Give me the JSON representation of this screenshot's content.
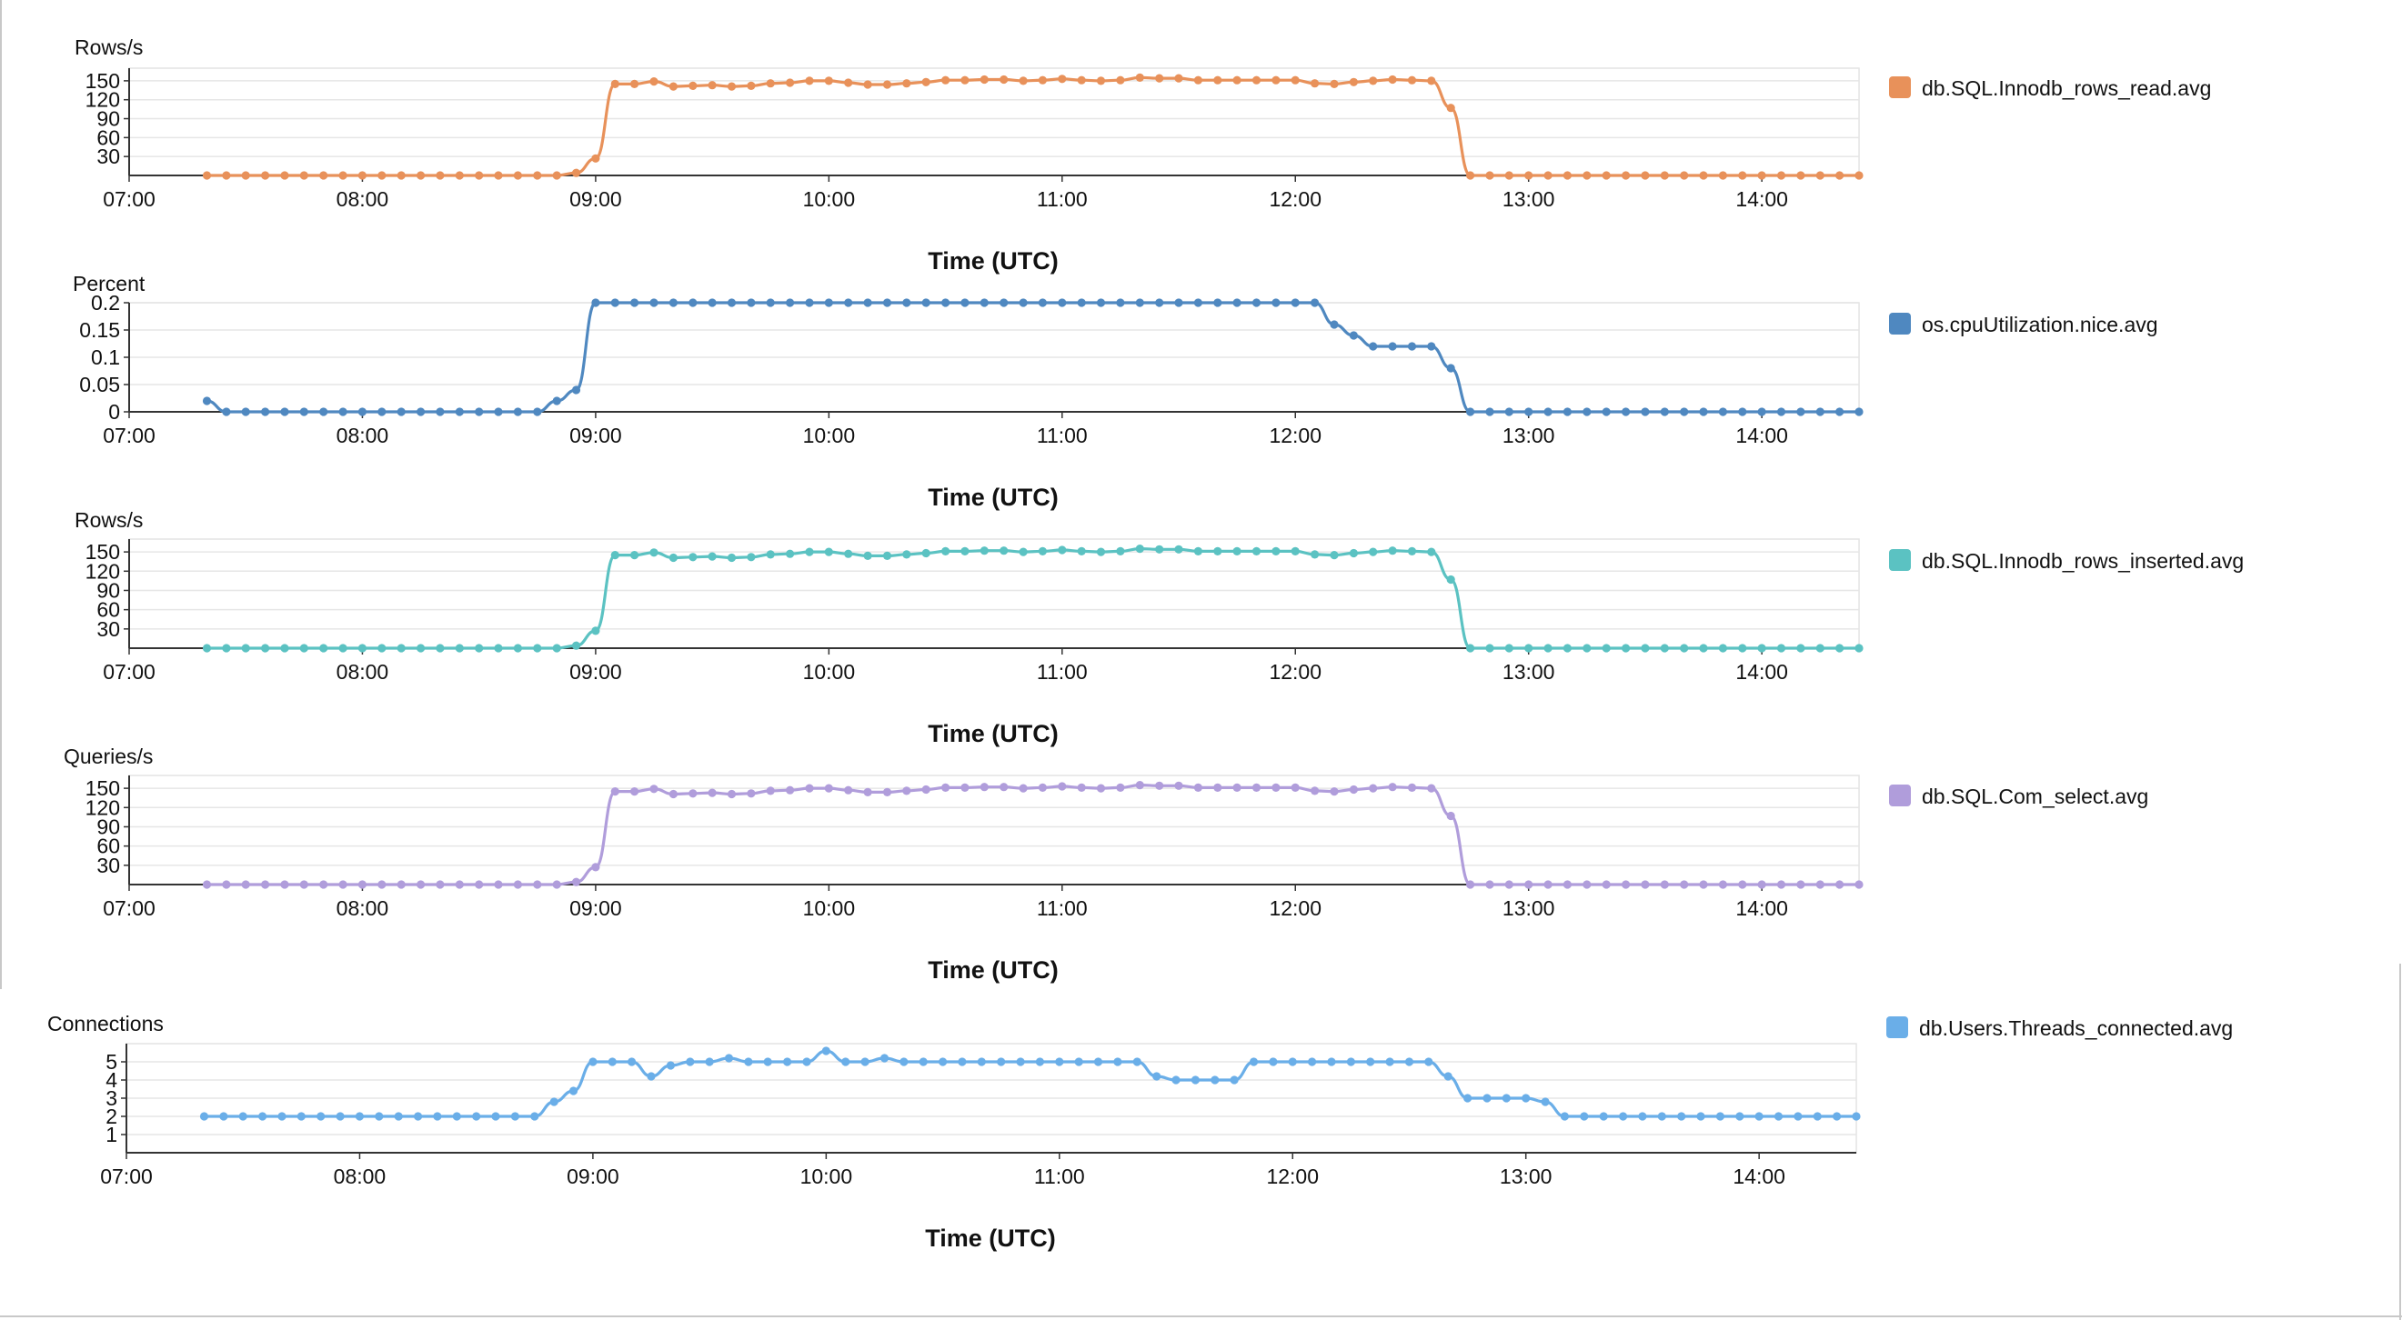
{
  "chart_data": [
    {
      "type": "line",
      "ylabel": "Rows/s",
      "xlabel": "Time (UTC)",
      "legend": "db.SQL.Innodb_rows_read.avg",
      "color": "#e8915a",
      "ylim": [
        0,
        170
      ],
      "yticks": [
        "30",
        "60",
        "90",
        "120",
        "150"
      ],
      "xticks": [
        "07:00",
        "08:00",
        "09:00",
        "10:00",
        "11:00",
        "12:00",
        "13:00",
        "14:00"
      ],
      "x_range": [
        "07:00",
        "14:25"
      ],
      "grid": true,
      "x": [
        "07:20",
        "07:25",
        "07:30",
        "07:35",
        "07:40",
        "07:45",
        "07:50",
        "07:55",
        "08:00",
        "08:05",
        "08:10",
        "08:15",
        "08:20",
        "08:25",
        "08:30",
        "08:35",
        "08:40",
        "08:45",
        "08:50",
        "08:55",
        "09:00",
        "09:05",
        "09:10",
        "09:15",
        "09:20",
        "09:25",
        "09:30",
        "09:35",
        "09:40",
        "09:45",
        "09:50",
        "09:55",
        "10:00",
        "10:05",
        "10:10",
        "10:15",
        "10:20",
        "10:25",
        "10:30",
        "10:35",
        "10:40",
        "10:45",
        "10:50",
        "10:55",
        "11:00",
        "11:05",
        "11:10",
        "11:15",
        "11:20",
        "11:25",
        "11:30",
        "11:35",
        "11:40",
        "11:45",
        "11:50",
        "11:55",
        "12:00",
        "12:05",
        "12:10",
        "12:15",
        "12:20",
        "12:25",
        "12:30",
        "12:35",
        "12:40",
        "12:45",
        "12:50",
        "12:55",
        "13:00",
        "13:05",
        "13:10",
        "13:15",
        "13:20",
        "13:25",
        "13:30",
        "13:35",
        "13:40",
        "13:45",
        "13:50",
        "13:55",
        "14:00",
        "14:05",
        "14:10",
        "14:15",
        "14:20",
        "14:25"
      ],
      "y": [
        0,
        0,
        0,
        0,
        0,
        0,
        0,
        0,
        0,
        0,
        0,
        0,
        0,
        0,
        0,
        0,
        0,
        0,
        0,
        4,
        27,
        145,
        145,
        149,
        141,
        142,
        143,
        141,
        142,
        146,
        147,
        150,
        150,
        147,
        144,
        144,
        146,
        148,
        151,
        151,
        152,
        152,
        150,
        151,
        153,
        151,
        150,
        151,
        155,
        154,
        154,
        151,
        151,
        151,
        151,
        151,
        151,
        146,
        145,
        148,
        150,
        152,
        151,
        150,
        107,
        0,
        0,
        0,
        0,
        0,
        0,
        0,
        0,
        0,
        0,
        0,
        0,
        0,
        0,
        0,
        0,
        0,
        0,
        0,
        0,
        0
      ]
    },
    {
      "type": "line",
      "ylabel": "Percent",
      "xlabel": "Time (UTC)",
      "legend": "os.cpuUtilization.nice.avg",
      "color": "#4f88c0",
      "ylim": [
        0,
        0.2
      ],
      "yticks": [
        "0",
        "0.05",
        "0.1",
        "0.15",
        "0.2"
      ],
      "xticks": [
        "07:00",
        "08:00",
        "09:00",
        "10:00",
        "11:00",
        "12:00",
        "13:00",
        "14:00"
      ],
      "x_range": [
        "07:00",
        "14:25"
      ],
      "grid": true,
      "x": [
        "07:20",
        "07:25",
        "07:30",
        "07:35",
        "07:40",
        "07:45",
        "07:50",
        "07:55",
        "08:00",
        "08:05",
        "08:10",
        "08:15",
        "08:20",
        "08:25",
        "08:30",
        "08:35",
        "08:40",
        "08:45",
        "08:50",
        "08:55",
        "09:00",
        "09:05",
        "09:10",
        "09:15",
        "09:20",
        "09:25",
        "09:30",
        "09:35",
        "09:40",
        "09:45",
        "09:50",
        "09:55",
        "10:00",
        "10:05",
        "10:10",
        "10:15",
        "10:20",
        "10:25",
        "10:30",
        "10:35",
        "10:40",
        "10:45",
        "10:50",
        "10:55",
        "11:00",
        "11:05",
        "11:10",
        "11:15",
        "11:20",
        "11:25",
        "11:30",
        "11:35",
        "11:40",
        "11:45",
        "11:50",
        "11:55",
        "12:00",
        "12:05",
        "12:10",
        "12:15",
        "12:20",
        "12:25",
        "12:30",
        "12:35",
        "12:40",
        "12:45",
        "12:50",
        "12:55",
        "13:00",
        "13:05",
        "13:10",
        "13:15",
        "13:20",
        "13:25",
        "13:30",
        "13:35",
        "13:40",
        "13:45",
        "13:50",
        "13:55",
        "14:00",
        "14:05",
        "14:10",
        "14:15",
        "14:20",
        "14:25"
      ],
      "y": [
        0.02,
        0,
        0,
        0,
        0,
        0,
        0,
        0,
        0,
        0,
        0,
        0,
        0,
        0,
        0,
        0,
        0,
        0,
        0.02,
        0.04,
        0.2,
        0.2,
        0.2,
        0.2,
        0.2,
        0.2,
        0.2,
        0.2,
        0.2,
        0.2,
        0.2,
        0.2,
        0.2,
        0.2,
        0.2,
        0.2,
        0.2,
        0.2,
        0.2,
        0.2,
        0.2,
        0.2,
        0.2,
        0.2,
        0.2,
        0.2,
        0.2,
        0.2,
        0.2,
        0.2,
        0.2,
        0.2,
        0.2,
        0.2,
        0.2,
        0.2,
        0.2,
        0.2,
        0.16,
        0.14,
        0.12,
        0.12,
        0.12,
        0.12,
        0.08,
        0,
        0,
        0,
        0,
        0,
        0,
        0,
        0,
        0,
        0,
        0,
        0,
        0,
        0,
        0,
        0,
        0,
        0,
        0,
        0,
        0
      ]
    },
    {
      "type": "line",
      "ylabel": "Rows/s",
      "xlabel": "Time (UTC)",
      "legend": "db.SQL.Innodb_rows_inserted.avg",
      "color": "#5bc2c2",
      "ylim": [
        0,
        170
      ],
      "yticks": [
        "30",
        "60",
        "90",
        "120",
        "150"
      ],
      "xticks": [
        "07:00",
        "08:00",
        "09:00",
        "10:00",
        "11:00",
        "12:00",
        "13:00",
        "14:00"
      ],
      "x_range": [
        "07:00",
        "14:25"
      ],
      "grid": true,
      "x": [
        "07:20",
        "07:25",
        "07:30",
        "07:35",
        "07:40",
        "07:45",
        "07:50",
        "07:55",
        "08:00",
        "08:05",
        "08:10",
        "08:15",
        "08:20",
        "08:25",
        "08:30",
        "08:35",
        "08:40",
        "08:45",
        "08:50",
        "08:55",
        "09:00",
        "09:05",
        "09:10",
        "09:15",
        "09:20",
        "09:25",
        "09:30",
        "09:35",
        "09:40",
        "09:45",
        "09:50",
        "09:55",
        "10:00",
        "10:05",
        "10:10",
        "10:15",
        "10:20",
        "10:25",
        "10:30",
        "10:35",
        "10:40",
        "10:45",
        "10:50",
        "10:55",
        "11:00",
        "11:05",
        "11:10",
        "11:15",
        "11:20",
        "11:25",
        "11:30",
        "11:35",
        "11:40",
        "11:45",
        "11:50",
        "11:55",
        "12:00",
        "12:05",
        "12:10",
        "12:15",
        "12:20",
        "12:25",
        "12:30",
        "12:35",
        "12:40",
        "12:45",
        "12:50",
        "12:55",
        "13:00",
        "13:05",
        "13:10",
        "13:15",
        "13:20",
        "13:25",
        "13:30",
        "13:35",
        "13:40",
        "13:45",
        "13:50",
        "13:55",
        "14:00",
        "14:05",
        "14:10",
        "14:15",
        "14:20",
        "14:25"
      ],
      "y": [
        0,
        0,
        0,
        0,
        0,
        0,
        0,
        0,
        0,
        0,
        0,
        0,
        0,
        0,
        0,
        0,
        0,
        0,
        0,
        4,
        27,
        145,
        145,
        149,
        141,
        142,
        143,
        141,
        142,
        146,
        147,
        150,
        150,
        147,
        144,
        144,
        146,
        148,
        151,
        151,
        152,
        152,
        150,
        151,
        153,
        151,
        150,
        151,
        155,
        154,
        154,
        151,
        151,
        151,
        151,
        151,
        151,
        146,
        145,
        148,
        150,
        152,
        151,
        150,
        107,
        0,
        0,
        0,
        0,
        0,
        0,
        0,
        0,
        0,
        0,
        0,
        0,
        0,
        0,
        0,
        0,
        0,
        0,
        0,
        0,
        0
      ]
    },
    {
      "type": "line",
      "ylabel": "Queries/s",
      "xlabel": "Time (UTC)",
      "legend": "db.SQL.Com_select.avg",
      "color": "#b09ddb",
      "ylim": [
        0,
        170
      ],
      "yticks": [
        "30",
        "60",
        "90",
        "120",
        "150"
      ],
      "xticks": [
        "07:00",
        "08:00",
        "09:00",
        "10:00",
        "11:00",
        "12:00",
        "13:00",
        "14:00"
      ],
      "x_range": [
        "07:00",
        "14:25"
      ],
      "grid": true,
      "x": [
        "07:20",
        "07:25",
        "07:30",
        "07:35",
        "07:40",
        "07:45",
        "07:50",
        "07:55",
        "08:00",
        "08:05",
        "08:10",
        "08:15",
        "08:20",
        "08:25",
        "08:30",
        "08:35",
        "08:40",
        "08:45",
        "08:50",
        "08:55",
        "09:00",
        "09:05",
        "09:10",
        "09:15",
        "09:20",
        "09:25",
        "09:30",
        "09:35",
        "09:40",
        "09:45",
        "09:50",
        "09:55",
        "10:00",
        "10:05",
        "10:10",
        "10:15",
        "10:20",
        "10:25",
        "10:30",
        "10:35",
        "10:40",
        "10:45",
        "10:50",
        "10:55",
        "11:00",
        "11:05",
        "11:10",
        "11:15",
        "11:20",
        "11:25",
        "11:30",
        "11:35",
        "11:40",
        "11:45",
        "11:50",
        "11:55",
        "12:00",
        "12:05",
        "12:10",
        "12:15",
        "12:20",
        "12:25",
        "12:30",
        "12:35",
        "12:40",
        "12:45",
        "12:50",
        "12:55",
        "13:00",
        "13:05",
        "13:10",
        "13:15",
        "13:20",
        "13:25",
        "13:30",
        "13:35",
        "13:40",
        "13:45",
        "13:50",
        "13:55",
        "14:00",
        "14:05",
        "14:10",
        "14:15",
        "14:20",
        "14:25"
      ],
      "y": [
        0,
        0,
        0,
        0,
        0,
        0,
        0,
        0,
        0,
        0,
        0,
        0,
        0,
        0,
        0,
        0,
        0,
        0,
        0,
        4,
        27,
        145,
        145,
        149,
        141,
        142,
        143,
        141,
        142,
        146,
        147,
        150,
        150,
        147,
        144,
        144,
        146,
        148,
        151,
        151,
        152,
        152,
        150,
        151,
        153,
        151,
        150,
        151,
        155,
        154,
        154,
        151,
        151,
        151,
        151,
        151,
        151,
        146,
        145,
        148,
        150,
        152,
        151,
        150,
        107,
        0,
        0,
        0,
        0,
        0,
        0,
        0,
        0,
        0,
        0,
        0,
        0,
        0,
        0,
        0,
        0,
        0,
        0,
        0,
        0,
        0
      ]
    },
    {
      "type": "line",
      "ylabel": "Connections",
      "xlabel": "Time (UTC)",
      "legend": "db.Users.Threads_connected.avg",
      "color": "#6aaee8",
      "ylim": [
        0,
        6
      ],
      "yticks": [
        "1",
        "2",
        "3",
        "4",
        "5"
      ],
      "xticks": [
        "07:00",
        "08:00",
        "09:00",
        "10:00",
        "11:00",
        "12:00",
        "13:00",
        "14:00"
      ],
      "x_range": [
        "07:00",
        "14:25"
      ],
      "grid": true,
      "x": [
        "07:20",
        "07:25",
        "07:30",
        "07:35",
        "07:40",
        "07:45",
        "07:50",
        "07:55",
        "08:00",
        "08:05",
        "08:10",
        "08:15",
        "08:20",
        "08:25",
        "08:30",
        "08:35",
        "08:40",
        "08:45",
        "08:50",
        "08:55",
        "09:00",
        "09:05",
        "09:10",
        "09:15",
        "09:20",
        "09:25",
        "09:30",
        "09:35",
        "09:40",
        "09:45",
        "09:50",
        "09:55",
        "10:00",
        "10:05",
        "10:10",
        "10:15",
        "10:20",
        "10:25",
        "10:30",
        "10:35",
        "10:40",
        "10:45",
        "10:50",
        "10:55",
        "11:00",
        "11:05",
        "11:10",
        "11:15",
        "11:20",
        "11:25",
        "11:30",
        "11:35",
        "11:40",
        "11:45",
        "11:50",
        "11:55",
        "12:00",
        "12:05",
        "12:10",
        "12:15",
        "12:20",
        "12:25",
        "12:30",
        "12:35",
        "12:40",
        "12:45",
        "12:50",
        "12:55",
        "13:00",
        "13:05",
        "13:10",
        "13:15",
        "13:20",
        "13:25",
        "13:30",
        "13:35",
        "13:40",
        "13:45",
        "13:50",
        "13:55",
        "14:00",
        "14:05",
        "14:10",
        "14:15",
        "14:20",
        "14:25"
      ],
      "y": [
        2,
        2,
        2,
        2,
        2,
        2,
        2,
        2,
        2,
        2,
        2,
        2,
        2,
        2,
        2,
        2,
        2,
        2,
        2.8,
        3.4,
        5,
        5,
        5,
        4.2,
        4.8,
        5,
        5,
        5.2,
        5,
        5,
        5,
        5,
        5.6,
        5,
        5,
        5.2,
        5,
        5,
        5,
        5,
        5,
        5,
        5,
        5,
        5,
        5,
        5,
        5,
        5,
        4.2,
        4,
        4,
        4,
        4,
        5,
        5,
        5,
        5,
        5,
        5,
        5,
        5,
        5,
        5,
        4.2,
        3,
        3,
        3,
        3,
        2.8,
        2,
        2,
        2,
        2,
        2,
        2,
        2,
        2,
        2,
        2,
        2,
        2,
        2,
        2,
        2,
        2
      ]
    }
  ]
}
